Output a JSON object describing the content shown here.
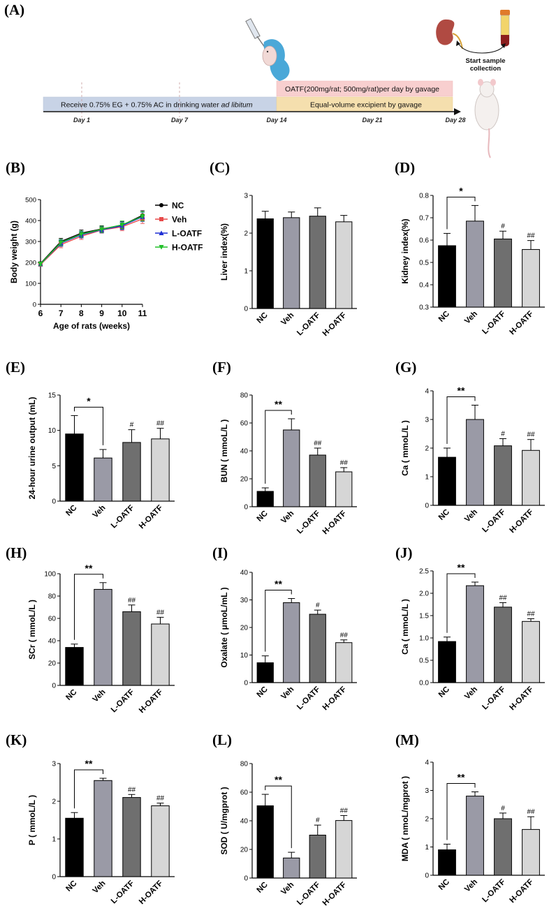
{
  "panel_letters": {
    "A": "(A)",
    "B": "(B)",
    "C": "(C)",
    "D": "(D)",
    "E": "(E)",
    "F": "(F)",
    "G": "(G)",
    "H": "(H)",
    "I": "(I)",
    "J": "(J)",
    "K": "(K)",
    "L": "(L)",
    "M": "(M)"
  },
  "colors": {
    "nc": "#000000",
    "veh": "#9a9aa6",
    "l_oatf": "#6f6f6f",
    "h_oatf": "#d6d6d6",
    "timeline_blue": "#c8d3e6",
    "timeline_pink": "#f8cfcf",
    "timeline_yellow": "#f5dfae",
    "line_nc": "#000000",
    "line_veh": "#e84a4a",
    "line_l": "#1f2fd4",
    "line_h": "#22c02a"
  },
  "schematic": {
    "bar_blue_text_main": "Receive 0.75% EG + 0.75% AC in drinking water ",
    "bar_blue_text_italic": "ad libitum",
    "bar_pink_text": "OATF(200mg/rat; 500mg/rat)per day by gavage",
    "bar_yellow_text": "Equal-volume excipient  by gavage",
    "days": [
      "Day 1",
      "Day 7",
      "Day 14",
      "Day 21",
      "Day 28"
    ],
    "start_label_line1": "Start sample",
    "start_label_line2": "collection",
    "icons": [
      "syringe-rat-icon",
      "kidney-icon",
      "blood-tube-icon",
      "rat-icon"
    ]
  },
  "chart_data": [
    {
      "id": "B",
      "type": "line",
      "title": "",
      "xlabel": "Age of rats (weeks)",
      "ylabel": "Body weight (g)",
      "x": [
        6,
        7,
        8,
        9,
        10,
        11
      ],
      "xlim": [
        6,
        11
      ],
      "ylim": [
        0,
        500
      ],
      "xticks": [
        "6",
        "7",
        "8",
        "9",
        "10",
        "11"
      ],
      "yticks": [
        "0",
        "100",
        "200",
        "300",
        "400",
        "500"
      ],
      "legend_position": "right",
      "series": [
        {
          "name": "NC",
          "values": [
            195,
            300,
            340,
            360,
            378,
            425
          ],
          "errors": [
            8,
            15,
            15,
            15,
            18,
            22
          ],
          "marker": "circle"
        },
        {
          "name": "Veh",
          "values": [
            190,
            285,
            325,
            355,
            370,
            408
          ],
          "errors": [
            8,
            15,
            15,
            15,
            18,
            22
          ],
          "marker": "square"
        },
        {
          "name": "L-OATF",
          "values": [
            192,
            292,
            332,
            356,
            375,
            418
          ],
          "errors": [
            8,
            15,
            15,
            15,
            18,
            22
          ],
          "marker": "triangle"
        },
        {
          "name": "H-OATF",
          "values": [
            193,
            295,
            335,
            358,
            380,
            420
          ],
          "errors": [
            8,
            15,
            15,
            15,
            18,
            22
          ],
          "marker": "triangle-down"
        }
      ]
    },
    {
      "id": "C",
      "type": "bar",
      "ylabel": "Liver index(%)",
      "categories": [
        "NC",
        "Veh",
        "L-OATF",
        "H-OATF"
      ],
      "values": [
        2.38,
        2.41,
        2.45,
        2.3
      ],
      "errors": [
        0.2,
        0.15,
        0.22,
        0.17
      ],
      "ylim": [
        0,
        3
      ],
      "yticks": [
        "0",
        "1",
        "2",
        "3"
      ],
      "significance": [],
      "markers": [
        "",
        "",
        "",
        ""
      ]
    },
    {
      "id": "D",
      "type": "bar",
      "ylabel": "Kidney index(%)",
      "categories": [
        "NC",
        "Veh",
        "L-OATF",
        "H-OATF"
      ],
      "values": [
        0.575,
        0.685,
        0.605,
        0.558
      ],
      "errors": [
        0.055,
        0.07,
        0.035,
        0.04
      ],
      "ylim": [
        0.3,
        0.8
      ],
      "yticks": [
        "0.3",
        "0.4",
        "0.5",
        "0.6",
        "0.7",
        "0.8"
      ],
      "significance": [
        {
          "from": 0,
          "to": 1,
          "label": "*"
        }
      ],
      "markers": [
        "",
        "",
        "#",
        "##"
      ]
    },
    {
      "id": "E",
      "type": "bar",
      "ylabel": "24-hour urine output (mL)",
      "categories": [
        "NC",
        "Veh",
        "L-OATF",
        "H-OATF"
      ],
      "values": [
        9.5,
        6.1,
        8.3,
        8.8
      ],
      "errors": [
        2.6,
        1.2,
        1.8,
        1.5
      ],
      "ylim": [
        0,
        15
      ],
      "yticks": [
        "0",
        "5",
        "10",
        "15"
      ],
      "significance": [
        {
          "from": 0,
          "to": 1,
          "label": "*"
        }
      ],
      "markers": [
        "",
        "",
        "#",
        "##"
      ]
    },
    {
      "id": "F",
      "type": "bar",
      "ylabel": "BUN ( mmoL/L )",
      "categories": [
        "NC",
        "Veh",
        "L-OATF",
        "H-OATF"
      ],
      "values": [
        11,
        55,
        37,
        25
      ],
      "errors": [
        2.5,
        8,
        5,
        3
      ],
      "ylim": [
        0,
        80
      ],
      "yticks": [
        "0",
        "20",
        "40",
        "60",
        "80"
      ],
      "significance": [
        {
          "from": 0,
          "to": 1,
          "label": "**"
        }
      ],
      "markers": [
        "",
        "",
        "##",
        "##"
      ]
    },
    {
      "id": "G",
      "type": "bar",
      "ylabel": "Ca ( mmoL/L )",
      "categories": [
        "NC",
        "Veh",
        "L-OATF",
        "H-OATF"
      ],
      "values": [
        1.68,
        3.0,
        2.08,
        1.92
      ],
      "errors": [
        0.32,
        0.5,
        0.25,
        0.38
      ],
      "ylim": [
        0,
        4
      ],
      "yticks": [
        "0",
        "1",
        "2",
        "3",
        "4"
      ],
      "significance": [
        {
          "from": 0,
          "to": 1,
          "label": "**"
        }
      ],
      "markers": [
        "",
        "",
        "#",
        "##"
      ]
    },
    {
      "id": "H",
      "type": "bar",
      "ylabel": "SCr ( mmoL/L )",
      "categories": [
        "NC",
        "Veh",
        "L-OATF",
        "H-OATF"
      ],
      "values": [
        34,
        86,
        66,
        55
      ],
      "errors": [
        3,
        6,
        6,
        6
      ],
      "ylim": [
        0,
        100
      ],
      "yticks": [
        "0",
        "20",
        "40",
        "60",
        "80",
        "100"
      ],
      "significance": [
        {
          "from": 0,
          "to": 1,
          "label": "**"
        }
      ],
      "markers": [
        "",
        "",
        "##",
        "##"
      ]
    },
    {
      "id": "I",
      "type": "bar",
      "ylabel": "Oxalate ( μmoL/mL )",
      "categories": [
        "NC",
        "Veh",
        "L-OATF",
        "H-OATF"
      ],
      "values": [
        7.2,
        29,
        24.8,
        14.5
      ],
      "errors": [
        2.5,
        1.5,
        1.5,
        1
      ],
      "ylim": [
        0,
        40
      ],
      "yticks": [
        "0",
        "10",
        "20",
        "30",
        "40"
      ],
      "significance": [
        {
          "from": 0,
          "to": 1,
          "label": "**"
        }
      ],
      "markers": [
        "",
        "",
        "#",
        "##"
      ]
    },
    {
      "id": "J",
      "type": "bar",
      "ylabel": "Ca ( mmoL/L )",
      "categories": [
        "NC",
        "Veh",
        "L-OATF",
        "H-OATF"
      ],
      "values": [
        0.92,
        2.17,
        1.69,
        1.37
      ],
      "errors": [
        0.1,
        0.08,
        0.1,
        0.06
      ],
      "ylim": [
        0,
        2.5
      ],
      "yticks": [
        "0.0",
        "0.5",
        "1.0",
        "1.5",
        "2.0",
        "2.5"
      ],
      "significance": [
        {
          "from": 0,
          "to": 1,
          "label": "**"
        }
      ],
      "markers": [
        "",
        "",
        "##",
        "##"
      ]
    },
    {
      "id": "K",
      "type": "bar",
      "ylabel": "P ( mmoL/L )",
      "categories": [
        "NC",
        "Veh",
        "L-OATF",
        "H-OATF"
      ],
      "values": [
        1.55,
        2.55,
        2.1,
        1.88
      ],
      "errors": [
        0.15,
        0.06,
        0.08,
        0.07
      ],
      "ylim": [
        0,
        3
      ],
      "yticks": [
        "0",
        "1",
        "2",
        "3"
      ],
      "significance": [
        {
          "from": 0,
          "to": 1,
          "label": "**"
        }
      ],
      "markers": [
        "",
        "",
        "##",
        "##"
      ]
    },
    {
      "id": "L",
      "type": "bar",
      "ylabel": "SOD ( U/mgprot )",
      "categories": [
        "NC",
        "Veh",
        "L-OATF",
        "H-OATF"
      ],
      "values": [
        50.5,
        14,
        30,
        40.2
      ],
      "errors": [
        8,
        4,
        7,
        3.5
      ],
      "ylim": [
        0,
        80
      ],
      "yticks": [
        "0",
        "20",
        "40",
        "60",
        "80"
      ],
      "significance": [
        {
          "from": 0,
          "to": 1,
          "label": "**"
        }
      ],
      "markers": [
        "",
        "",
        "#",
        "##"
      ]
    },
    {
      "id": "M",
      "type": "bar",
      "ylabel": "MDA ( nmoL/mgprot )",
      "categories": [
        "NC",
        "Veh",
        "L-OATF",
        "H-OATF"
      ],
      "values": [
        0.9,
        2.8,
        2.0,
        1.62
      ],
      "errors": [
        0.2,
        0.15,
        0.2,
        0.45
      ],
      "ylim": [
        0,
        4
      ],
      "yticks": [
        "0",
        "1",
        "2",
        "3",
        "4"
      ],
      "significance": [
        {
          "from": 0,
          "to": 1,
          "label": "**"
        }
      ],
      "markers": [
        "",
        "",
        "#",
        "##"
      ]
    }
  ]
}
